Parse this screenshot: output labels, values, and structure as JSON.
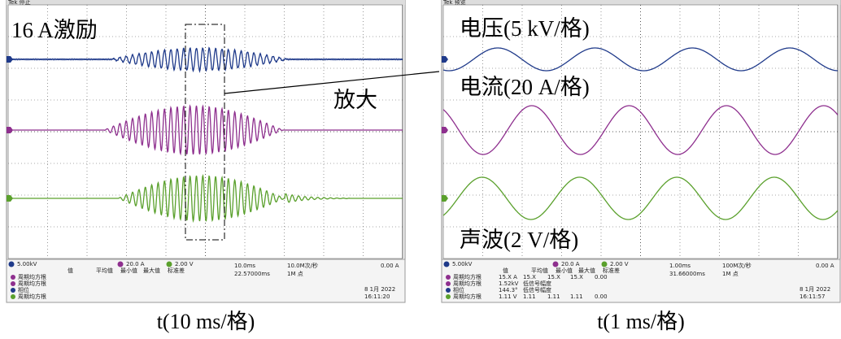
{
  "left": {
    "header": "Tek 停止",
    "label": "16 A激励",
    "zoom_label": "放大",
    "channels": [
      "5.00kV",
      "20.0 A",
      "2.00 V"
    ],
    "timebase": "10.0ms",
    "trigger_pos": "22.57000ms",
    "sample_rate": "10.0M次/秒",
    "record": "1M 点",
    "trigger": "0.00 A",
    "date": "8 1月 2022",
    "time": "16:11:20",
    "measure_headers": [
      "值",
      "平均值",
      "最小值",
      "最大值",
      "标准差"
    ],
    "measure_rows": [
      [
        "周期均方根"
      ],
      [
        "周期均方根"
      ],
      [
        "相位"
      ],
      [
        "周期均方根"
      ]
    ],
    "x_axis": "t(10 ms/格)"
  },
  "right": {
    "header": "Tek 预览",
    "labels": [
      "电压(5 kV/格)",
      "电流(20 A/格)",
      "声波(2 V/格)"
    ],
    "channels": [
      "5.00kV",
      "20.0 A",
      "2.00 V"
    ],
    "timebase": "1.00ms",
    "trigger_pos": "31.66000ms",
    "sample_rate": "100M次/秒",
    "record": "1M 点",
    "trigger": "0.00 A",
    "date": "8 1月 2022",
    "time": "16:11:57",
    "measure_headers": [
      "值",
      "平均值",
      "最小值",
      "最大值",
      "标准差"
    ],
    "measure_rows": [
      [
        "周期均方根",
        "15.X A",
        "15.X",
        "15.X",
        "15.X",
        "0.00"
      ],
      [
        "周期均方根",
        "1.52kV",
        "低信号幅度"
      ],
      [
        "相位",
        "144.3°",
        "低信号幅度"
      ],
      [
        "周期均方根",
        "1.11 V",
        "1.11",
        "1.11",
        "1.11",
        "0.00"
      ]
    ],
    "x_axis": "t(1 ms/格)"
  }
}
